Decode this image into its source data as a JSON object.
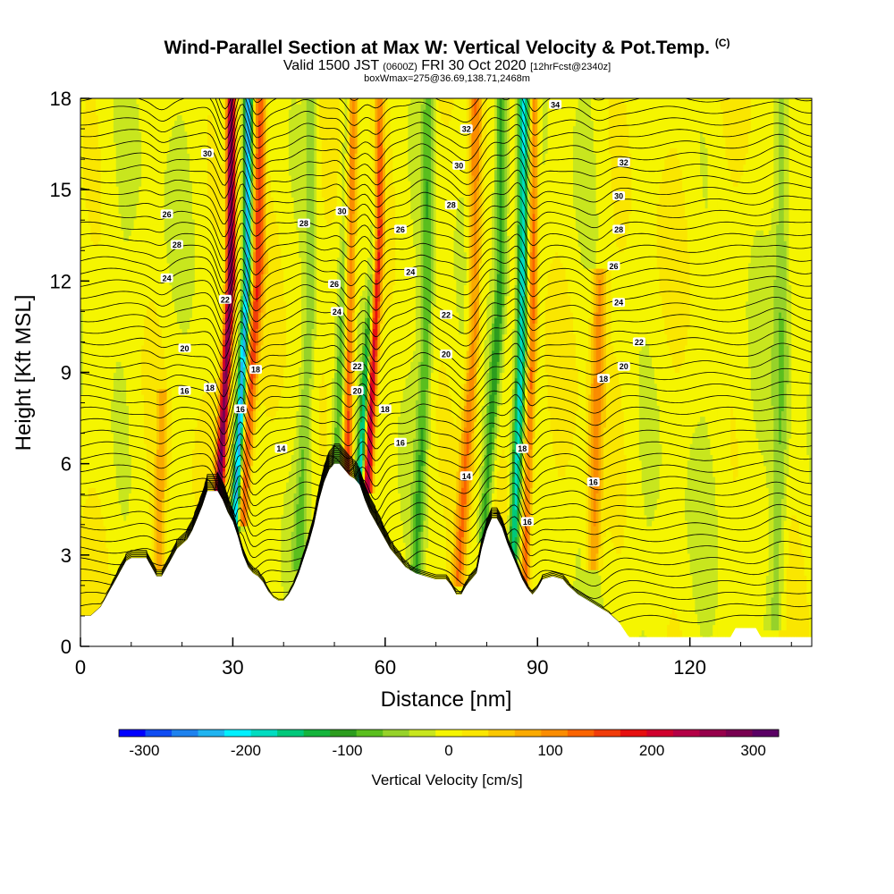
{
  "title": {
    "main": "Wind-Parallel Section at Max W: Vertical Velocity & Pot.Temp.",
    "mark": "(C)",
    "valid_prefix": "Valid 1500 JST",
    "valid_z": "(0600Z)",
    "valid_date": "FRI 30 Oct 2020",
    "valid_fcst": "[12hrFcst@2340z]",
    "box_line": "boxWmax=275@36.69,138.71,2468m"
  },
  "chart_data": {
    "type": "heatmap",
    "xlabel": "Distance [nm]",
    "ylabel": "Height [Kft MSL]",
    "xlim": [
      0,
      144
    ],
    "ylim": [
      0,
      18
    ],
    "x_ticks": [
      0,
      30,
      60,
      90,
      120
    ],
    "y_ticks": [
      0,
      3,
      6,
      9,
      12,
      15,
      18
    ],
    "fill_variable": "Vertical Velocity [cm/s]",
    "contour_variable": "Potential temperature",
    "colorbar": {
      "label": "Vertical Velocity [cm/s]",
      "range": [
        -325,
        325
      ],
      "ticks": [
        -300,
        -200,
        -100,
        0,
        100,
        200,
        300
      ],
      "colors": [
        "#0000ff",
        "#0f4cf2",
        "#1e82ee",
        "#20b4f0",
        "#00f0ff",
        "#00dcc0",
        "#00c87a",
        "#14b43c",
        "#2c9c1e",
        "#5abe1e",
        "#96d22a",
        "#c8e61e",
        "#f5f500",
        "#fae600",
        "#fac800",
        "#faaa00",
        "#fa8c00",
        "#fa6400",
        "#f03c0a",
        "#e60f0f",
        "#d0002d",
        "#b40046",
        "#96004b",
        "#780050",
        "#5a0064"
      ]
    },
    "terrain_profile": [
      [
        0,
        1
      ],
      [
        2,
        1
      ],
      [
        4,
        1.3
      ],
      [
        5,
        1.6
      ],
      [
        6,
        1.9
      ],
      [
        7,
        2.2
      ],
      [
        8,
        2.5
      ],
      [
        9,
        2.8
      ],
      [
        10,
        2.9
      ],
      [
        13,
        2.9
      ],
      [
        14,
        2.6
      ],
      [
        15,
        2.3
      ],
      [
        16,
        2.3
      ],
      [
        17,
        2.6
      ],
      [
        18,
        2.9
      ],
      [
        19,
        3.2
      ],
      [
        21,
        3.5
      ],
      [
        22,
        3.8
      ],
      [
        23,
        4.2
      ],
      [
        24,
        4.6
      ],
      [
        25,
        5.1
      ],
      [
        26,
        5.1
      ],
      [
        27,
        5.1
      ],
      [
        28,
        4.8
      ],
      [
        29,
        4.4
      ],
      [
        30,
        4.1
      ],
      [
        31,
        3.6
      ],
      [
        32,
        3.0
      ],
      [
        33,
        2.6
      ],
      [
        34,
        2.4
      ],
      [
        35,
        2.3
      ],
      [
        36,
        2.1
      ],
      [
        37,
        1.8
      ],
      [
        38,
        1.6
      ],
      [
        39,
        1.5
      ],
      [
        40,
        1.5
      ],
      [
        41,
        1.7
      ],
      [
        42,
        2.0
      ],
      [
        43,
        2.4
      ],
      [
        44,
        2.9
      ],
      [
        45,
        3.4
      ],
      [
        46,
        4.0
      ],
      [
        47,
        4.8
      ],
      [
        48,
        5.4
      ],
      [
        49,
        5.8
      ],
      [
        50,
        6.0
      ],
      [
        51,
        6.0
      ],
      [
        52,
        5.8
      ],
      [
        53,
        5.6
      ],
      [
        54,
        5.5
      ],
      [
        55,
        5.3
      ],
      [
        56,
        4.8
      ],
      [
        57,
        4.4
      ],
      [
        58,
        4.1
      ],
      [
        59,
        3.8
      ],
      [
        60,
        3.5
      ],
      [
        61,
        3.2
      ],
      [
        62,
        3.0
      ],
      [
        63,
        2.8
      ],
      [
        64,
        2.6
      ],
      [
        66,
        2.4
      ],
      [
        68,
        2.3
      ],
      [
        70,
        2.2
      ],
      [
        72,
        2.2
      ],
      [
        73,
        2.0
      ],
      [
        74,
        1.7
      ],
      [
        75,
        1.7
      ],
      [
        76,
        2.0
      ],
      [
        78,
        2.4
      ],
      [
        79,
        3.2
      ],
      [
        80,
        3.8
      ],
      [
        81,
        4.2
      ],
      [
        82,
        4.2
      ],
      [
        83,
        3.9
      ],
      [
        84,
        3.4
      ],
      [
        85,
        3.0
      ],
      [
        86,
        2.6
      ],
      [
        87,
        2.2
      ],
      [
        88,
        1.9
      ],
      [
        89,
        1.7
      ],
      [
        90,
        1.9
      ],
      [
        91,
        2.2
      ],
      [
        93,
        2.3
      ],
      [
        95,
        2.2
      ],
      [
        96,
        2.0
      ],
      [
        98,
        1.7
      ],
      [
        100,
        1.5
      ],
      [
        102,
        1.3
      ],
      [
        104,
        1.1
      ],
      [
        106,
        0.8
      ],
      [
        108,
        0.3
      ],
      [
        128,
        0.3
      ],
      [
        129,
        0.6
      ],
      [
        133,
        0.6
      ],
      [
        134,
        0.3
      ],
      [
        144,
        0.3
      ]
    ],
    "updraft_bands": [
      {
        "vx0": 27,
        "vx1": 29.5,
        "y0": 4.0,
        "y1": 18,
        "lean": 0.04,
        "w": 290,
        "width_nm": 0.9
      },
      {
        "vx0": 30.5,
        "vx1": 32.5,
        "y0": 4.2,
        "y1": 18,
        "lean": 0.12,
        "w": -240,
        "width_nm": 0.8
      },
      {
        "vx0": 32,
        "vx1": 34.5,
        "y0": 4.3,
        "y1": 18,
        "lean": 0.18,
        "w": 150,
        "width_nm": 1.1
      },
      {
        "vx0": 52.5,
        "vx1": 52.5,
        "y0": 5.2,
        "y1": 18,
        "lean": 0.23,
        "w": 170,
        "width_nm": 1.0
      },
      {
        "vx0": 56.5,
        "vx1": 58.5,
        "y0": 5.5,
        "y1": 18,
        "lean": 0.0,
        "w": 275,
        "width_nm": 1.0
      },
      {
        "vx0": 55.0,
        "vx1": 57.5,
        "y0": 5.2,
        "y1": 18,
        "lean": 0.19,
        "w": -200,
        "width_nm": 0.9
      },
      {
        "vx0": 50.5,
        "vx1": 52.0,
        "y0": 6.0,
        "y1": 18,
        "lean": 0.23,
        "w": -90,
        "width_nm": 1.2
      },
      {
        "vx0": 74.5,
        "vx1": 77.5,
        "y0": 2.4,
        "y1": 18,
        "lean": 0.05,
        "w": 120,
        "width_nm": 1.3
      },
      {
        "vx0": 79.5,
        "vx1": 82.5,
        "y0": 3.8,
        "y1": 18,
        "lean": 0.07,
        "w": -110,
        "width_nm": 1.2
      },
      {
        "vx0": 85.0,
        "vx1": 86.5,
        "y0": 2.0,
        "y1": 18,
        "lean": 0.14,
        "w": -180,
        "width_nm": 1.0
      },
      {
        "vx0": 87.5,
        "vx1": 88.5,
        "y0": 2.0,
        "y1": 18,
        "lean": 0.17,
        "w": 130,
        "width_nm": 0.9
      },
      {
        "vx0": 101,
        "vx1": 102,
        "y0": 3.0,
        "y1": 12,
        "lean": 0.02,
        "w": 100,
        "width_nm": 1.4
      },
      {
        "vx0": 15.5,
        "vx1": 16.5,
        "y0": 3.0,
        "y1": 8,
        "lean": 0.0,
        "w": 70,
        "width_nm": 1.0
      },
      {
        "vx0": 43,
        "vx1": 45,
        "y0": 3.0,
        "y1": 18,
        "lean": 0.08,
        "w": -60,
        "width_nm": 1.2
      },
      {
        "vx0": 66,
        "vx1": 68,
        "y0": 2.4,
        "y1": 18,
        "lean": 0.08,
        "w": -80,
        "width_nm": 1.2
      },
      {
        "vx0": 137,
        "vx1": 138,
        "y0": 1.0,
        "y1": 18,
        "lean": 0.03,
        "w": -60,
        "width_nm": 1.6
      }
    ],
    "contour_labels": [
      {
        "x": 25,
        "y": 16.2,
        "text": "30"
      },
      {
        "x": 17,
        "y": 14.2,
        "text": "26"
      },
      {
        "x": 19,
        "y": 13.2,
        "text": "28"
      },
      {
        "x": 17,
        "y": 12.1,
        "text": "24"
      },
      {
        "x": 28.5,
        "y": 11.4,
        "text": "22"
      },
      {
        "x": 20.5,
        "y": 9.8,
        "text": "20"
      },
      {
        "x": 34.5,
        "y": 9.1,
        "text": "18"
      },
      {
        "x": 20.5,
        "y": 8.4,
        "text": "16"
      },
      {
        "x": 25.5,
        "y": 8.5,
        "text": "18"
      },
      {
        "x": 31.5,
        "y": 7.8,
        "text": "16"
      },
      {
        "x": 39.5,
        "y": 6.5,
        "text": "14"
      },
      {
        "x": 51.5,
        "y": 14.3,
        "text": "30"
      },
      {
        "x": 44,
        "y": 13.9,
        "text": "28"
      },
      {
        "x": 50,
        "y": 11.9,
        "text": "26"
      },
      {
        "x": 50.5,
        "y": 11.0,
        "text": "24"
      },
      {
        "x": 54.5,
        "y": 9.2,
        "text": "22"
      },
      {
        "x": 54.5,
        "y": 8.4,
        "text": "20"
      },
      {
        "x": 60,
        "y": 7.8,
        "text": "18"
      },
      {
        "x": 63,
        "y": 6.7,
        "text": "16"
      },
      {
        "x": 76,
        "y": 17.0,
        "text": "32"
      },
      {
        "x": 74.5,
        "y": 15.8,
        "text": "30"
      },
      {
        "x": 73,
        "y": 14.5,
        "text": "28"
      },
      {
        "x": 63,
        "y": 13.7,
        "text": "26"
      },
      {
        "x": 65,
        "y": 12.3,
        "text": "24"
      },
      {
        "x": 72,
        "y": 10.9,
        "text": "22"
      },
      {
        "x": 72,
        "y": 9.6,
        "text": "20"
      },
      {
        "x": 76,
        "y": 5.6,
        "text": "14"
      },
      {
        "x": 87,
        "y": 6.5,
        "text": "18"
      },
      {
        "x": 88,
        "y": 4.1,
        "text": "16"
      },
      {
        "x": 93.5,
        "y": 17.8,
        "text": "34"
      },
      {
        "x": 107,
        "y": 15.9,
        "text": "32"
      },
      {
        "x": 106,
        "y": 14.8,
        "text": "30"
      },
      {
        "x": 106,
        "y": 13.7,
        "text": "28"
      },
      {
        "x": 105,
        "y": 12.5,
        "text": "26"
      },
      {
        "x": 106,
        "y": 11.3,
        "text": "24"
      },
      {
        "x": 110,
        "y": 10.0,
        "text": "22"
      },
      {
        "x": 107,
        "y": 9.2,
        "text": "20"
      },
      {
        "x": 103,
        "y": 8.8,
        "text": "18"
      },
      {
        "x": 101,
        "y": 5.4,
        "text": "16"
      }
    ]
  }
}
